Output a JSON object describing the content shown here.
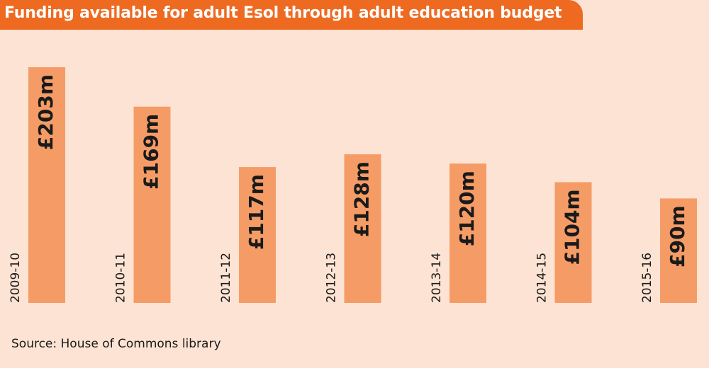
{
  "header": {
    "title": "Funding available for adult Esol through adult education budget"
  },
  "footer": {
    "source": "Source: House of Commons library"
  },
  "colors": {
    "background": "#fde3d3",
    "title_bar": "#ee6a21",
    "bar": "#f59c66",
    "text": "#1a1a1a"
  },
  "chart_data": {
    "type": "bar",
    "title": "Funding available for adult Esol through adult education budget",
    "categories": [
      "2009-10",
      "2010-11",
      "2011-12",
      "2012-13",
      "2013-14",
      "2014-15",
      "2015-16"
    ],
    "values": [
      203,
      169,
      117,
      128,
      120,
      104,
      90
    ],
    "value_labels": [
      "£203m",
      "£169m",
      "£117m",
      "£128m",
      "£120m",
      "£104m",
      "£90m"
    ],
    "xlabel": "",
    "ylabel": "",
    "ylim": [
      0,
      203
    ],
    "grid": false,
    "legend": "none"
  }
}
